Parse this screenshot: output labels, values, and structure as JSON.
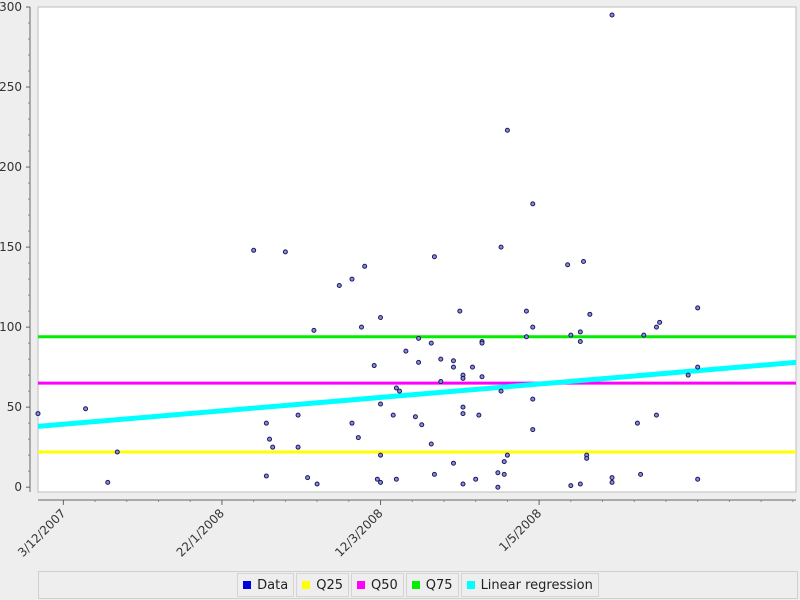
{
  "chart_data": {
    "type": "scatter",
    "y_ticks": [
      0,
      50,
      100,
      150,
      200,
      250,
      300
    ],
    "ylim": [
      -3,
      300
    ],
    "x_domain": [
      "2007-11-25",
      "2008-07-21"
    ],
    "x_ticks": [
      {
        "date": "2007-12-03",
        "label": "3/12/2007"
      },
      {
        "date": "2008-01-22",
        "label": "22/1/2008"
      },
      {
        "date": "2008-03-12",
        "label": "12/3/2008"
      },
      {
        "date": "2008-05-01",
        "label": "1/5/2008"
      }
    ],
    "series": [
      {
        "name": "Data",
        "color": "#0000dd",
        "points": [
          {
            "x": "2007-11-25",
            "y": 46
          },
          {
            "x": "2007-12-10",
            "y": 49
          },
          {
            "x": "2007-12-17",
            "y": 3
          },
          {
            "x": "2007-12-20",
            "y": 22
          },
          {
            "x": "2008-02-01",
            "y": 148
          },
          {
            "x": "2008-02-05",
            "y": 40
          },
          {
            "x": "2008-02-05",
            "y": 7
          },
          {
            "x": "2008-02-06",
            "y": 30
          },
          {
            "x": "2008-02-07",
            "y": 25
          },
          {
            "x": "2008-02-11",
            "y": 147
          },
          {
            "x": "2008-02-15",
            "y": 45
          },
          {
            "x": "2008-02-15",
            "y": 25
          },
          {
            "x": "2008-02-18",
            "y": 6
          },
          {
            "x": "2008-02-20",
            "y": 98
          },
          {
            "x": "2008-02-21",
            "y": 2
          },
          {
            "x": "2008-02-28",
            "y": 126
          },
          {
            "x": "2008-03-03",
            "y": 130
          },
          {
            "x": "2008-03-03",
            "y": 40
          },
          {
            "x": "2008-03-05",
            "y": 31
          },
          {
            "x": "2008-03-06",
            "y": 100
          },
          {
            "x": "2008-03-07",
            "y": 138
          },
          {
            "x": "2008-03-10",
            "y": 76
          },
          {
            "x": "2008-03-11",
            "y": 5
          },
          {
            "x": "2008-03-12",
            "y": 106
          },
          {
            "x": "2008-03-12",
            "y": 52
          },
          {
            "x": "2008-03-12",
            "y": 20
          },
          {
            "x": "2008-03-12",
            "y": 3
          },
          {
            "x": "2008-03-16",
            "y": 45
          },
          {
            "x": "2008-03-17",
            "y": 62
          },
          {
            "x": "2008-03-17",
            "y": 5
          },
          {
            "x": "2008-03-18",
            "y": 60
          },
          {
            "x": "2008-03-20",
            "y": 85
          },
          {
            "x": "2008-03-23",
            "y": 44
          },
          {
            "x": "2008-03-24",
            "y": 93
          },
          {
            "x": "2008-03-24",
            "y": 78
          },
          {
            "x": "2008-03-25",
            "y": 39
          },
          {
            "x": "2008-03-28",
            "y": 90
          },
          {
            "x": "2008-03-28",
            "y": 27
          },
          {
            "x": "2008-03-29",
            "y": 144
          },
          {
            "x": "2008-03-29",
            "y": 8
          },
          {
            "x": "2008-03-31",
            "y": 80
          },
          {
            "x": "2008-03-31",
            "y": 66
          },
          {
            "x": "2008-04-04",
            "y": 79
          },
          {
            "x": "2008-04-04",
            "y": 75
          },
          {
            "x": "2008-04-04",
            "y": 15
          },
          {
            "x": "2008-04-06",
            "y": 110
          },
          {
            "x": "2008-04-07",
            "y": 70
          },
          {
            "x": "2008-04-07",
            "y": 68
          },
          {
            "x": "2008-04-07",
            "y": 50
          },
          {
            "x": "2008-04-07",
            "y": 46
          },
          {
            "x": "2008-04-07",
            "y": 2
          },
          {
            "x": "2008-04-10",
            "y": 75
          },
          {
            "x": "2008-04-11",
            "y": 5
          },
          {
            "x": "2008-04-12",
            "y": 45
          },
          {
            "x": "2008-04-13",
            "y": 91
          },
          {
            "x": "2008-04-13",
            "y": 90
          },
          {
            "x": "2008-04-13",
            "y": 69
          },
          {
            "x": "2008-04-18",
            "y": 9
          },
          {
            "x": "2008-04-18",
            "y": 0
          },
          {
            "x": "2008-04-19",
            "y": 150
          },
          {
            "x": "2008-04-19",
            "y": 60
          },
          {
            "x": "2008-04-20",
            "y": 16
          },
          {
            "x": "2008-04-20",
            "y": 8
          },
          {
            "x": "2008-04-21",
            "y": 223
          },
          {
            "x": "2008-04-21",
            "y": 20
          },
          {
            "x": "2008-04-27",
            "y": 110
          },
          {
            "x": "2008-04-27",
            "y": 94
          },
          {
            "x": "2008-04-29",
            "y": 177
          },
          {
            "x": "2008-04-29",
            "y": 100
          },
          {
            "x": "2008-04-29",
            "y": 55
          },
          {
            "x": "2008-04-29",
            "y": 36
          },
          {
            "x": "2008-05-10",
            "y": 139
          },
          {
            "x": "2008-05-11",
            "y": 95
          },
          {
            "x": "2008-05-11",
            "y": 1
          },
          {
            "x": "2008-05-14",
            "y": 97
          },
          {
            "x": "2008-05-14",
            "y": 91
          },
          {
            "x": "2008-05-14",
            "y": 2
          },
          {
            "x": "2008-05-15",
            "y": 141
          },
          {
            "x": "2008-05-16",
            "y": 20
          },
          {
            "x": "2008-05-16",
            "y": 18
          },
          {
            "x": "2008-05-17",
            "y": 108
          },
          {
            "x": "2008-05-24",
            "y": 295
          },
          {
            "x": "2008-05-24",
            "y": 6
          },
          {
            "x": "2008-05-24",
            "y": 3
          },
          {
            "x": "2008-06-01",
            "y": 40
          },
          {
            "x": "2008-06-02",
            "y": 8
          },
          {
            "x": "2008-06-03",
            "y": 95
          },
          {
            "x": "2008-06-07",
            "y": 100
          },
          {
            "x": "2008-06-07",
            "y": 45
          },
          {
            "x": "2008-06-08",
            "y": 103
          },
          {
            "x": "2008-06-17",
            "y": 70
          },
          {
            "x": "2008-06-20",
            "y": 112
          },
          {
            "x": "2008-06-20",
            "y": 75
          },
          {
            "x": "2008-06-20",
            "y": 5
          }
        ]
      },
      {
        "name": "Q25",
        "color": "#ffff00",
        "value": 22
      },
      {
        "name": "Q50",
        "color": "#ff00ff",
        "value": 65
      },
      {
        "name": "Q75",
        "color": "#00ee00",
        "value": 94
      },
      {
        "name": "Linear regression",
        "color": "#00ffff",
        "start": {
          "x": "2007-11-25",
          "y": 38
        },
        "end": {
          "x": "2008-07-21",
          "y": 78
        }
      }
    ],
    "legend_position": "bottom",
    "grid": false
  }
}
